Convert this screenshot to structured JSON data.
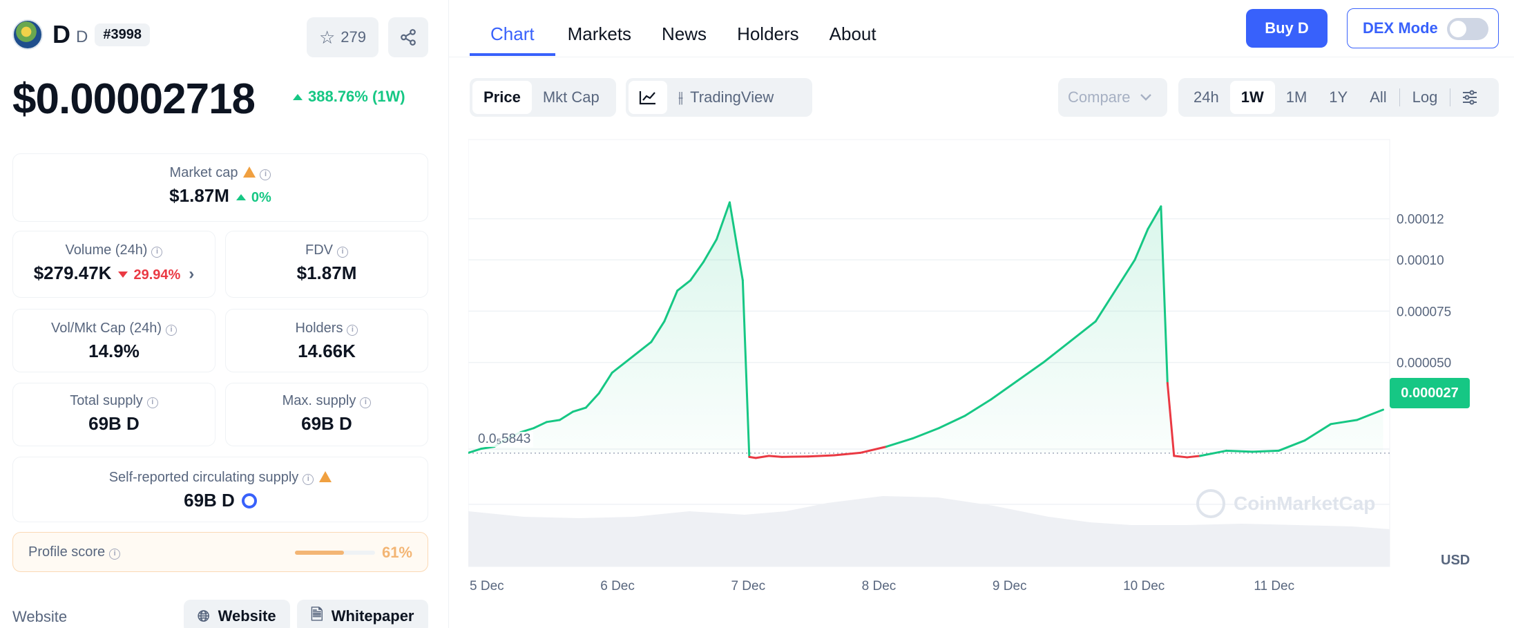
{
  "coin": {
    "name": "D",
    "symbol": "D",
    "rank": "#3998",
    "watchlist_count": "279",
    "price": "$0.00002718",
    "price_change": "388.76% (1W)"
  },
  "stats": {
    "market_cap_label": "Market cap",
    "market_cap_value": "$1.87M",
    "market_cap_change": "0%",
    "volume_label": "Volume (24h)",
    "volume_value": "$279.47K",
    "volume_change": "29.94%",
    "fdv_label": "FDV",
    "fdv_value": "$1.87M",
    "vol_mkt_label": "Vol/Mkt Cap (24h)",
    "vol_mkt_value": "14.9%",
    "holders_label": "Holders",
    "holders_value": "14.66K",
    "total_supply_label": "Total supply",
    "total_supply_value": "69B D",
    "max_supply_label": "Max. supply",
    "max_supply_value": "69B D",
    "circ_supply_label": "Self-reported circulating supply",
    "circ_supply_value": "69B D"
  },
  "profile": {
    "label": "Profile score",
    "value": "61%",
    "score": 0.61
  },
  "links": {
    "label": "Website",
    "website": "Website",
    "whitepaper": "Whitepaper"
  },
  "tabs": [
    "Chart",
    "Markets",
    "News",
    "Holders",
    "About"
  ],
  "actions": {
    "buy": "Buy D",
    "dex_mode": "DEX Mode",
    "dex_mode_on": false
  },
  "chart_controls": {
    "type_options": [
      "Price",
      "Mkt Cap"
    ],
    "type_selected": "Price",
    "line_icon": "line-chart-icon",
    "tradingview": "TradingView",
    "compare": "Compare",
    "ranges": [
      "24h",
      "1W",
      "1M",
      "1Y",
      "All"
    ],
    "range_selected": "1W",
    "log": "Log",
    "settings_icon": "sliders-icon"
  },
  "chart_data": {
    "type": "line",
    "currency": "USD",
    "x_labels": [
      "5 Dec",
      "6 Dec",
      "7 Dec",
      "8 Dec",
      "9 Dec",
      "10 Dec",
      "11 Dec"
    ],
    "y_ticks": [
      "0.00012",
      "0.00010",
      "0.000075",
      "0.000050"
    ],
    "y_tick_values": [
      0.00012,
      0.0001,
      7.5e-05,
      5e-05
    ],
    "current_price_label": "0.000027",
    "reference_label": "0.0₅5843",
    "reference_value": 5.843e-06,
    "watermark": "CoinMarketCap",
    "colors": {
      "up": "#16c784",
      "down": "#ea3943"
    },
    "series": [
      {
        "x": [
          0,
          0.1,
          0.2,
          0.3,
          0.4,
          0.5,
          0.6,
          0.7,
          0.8,
          0.9,
          1.0,
          1.1,
          1.2,
          1.3,
          1.4,
          1.5,
          1.6,
          1.7,
          1.8,
          1.9,
          2.0,
          2.1,
          2.15,
          2.2,
          2.3,
          2.4,
          2.6,
          2.8,
          3.0,
          3.2,
          3.4,
          3.6,
          3.8,
          4.0,
          4.2,
          4.4,
          4.6,
          4.8,
          5.0,
          5.1,
          5.2,
          5.3,
          5.35,
          5.4,
          5.5,
          5.6,
          5.8,
          6.0,
          6.2,
          6.4,
          6.6,
          6.8,
          7.0
        ],
        "values": [
          6e-06,
          8e-06,
          9e-06,
          1.3e-05,
          1.6e-05,
          1.8e-05,
          2.1e-05,
          2.2e-05,
          2.6e-05,
          2.8e-05,
          3.5e-05,
          4.5e-05,
          5e-05,
          5.5e-05,
          6e-05,
          7e-05,
          8.5e-05,
          9e-05,
          9.9e-05,
          0.00011,
          0.000128,
          9e-05,
          4e-06,
          3.5e-06,
          4.5e-06,
          4e-06,
          4.2e-06,
          4.8e-06,
          6e-06,
          9e-06,
          1.3e-05,
          1.8e-05,
          2.4e-05,
          3.2e-05,
          4.1e-05,
          5e-05,
          6e-05,
          7e-05,
          9e-05,
          0.0001,
          0.000115,
          0.000126,
          4e-05,
          4.5e-06,
          3.8e-06,
          4.5e-06,
          7e-06,
          6.5e-06,
          7e-06,
          1.2e-05,
          2e-05,
          2.2e-05,
          2.7e-05
        ]
      }
    ],
    "down_segments": [
      [
        2.15,
        3.2
      ],
      [
        5.35,
        5.65
      ],
      [
        6.0,
        6.1
      ]
    ]
  }
}
